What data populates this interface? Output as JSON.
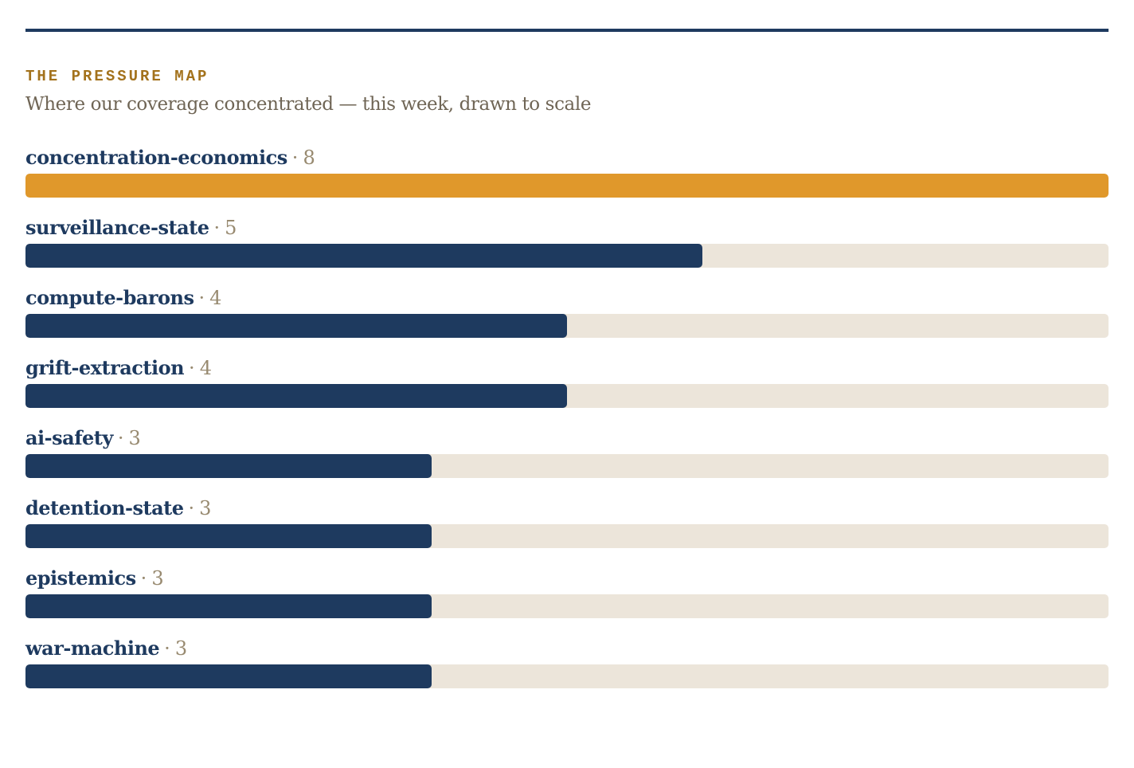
{
  "header": {
    "kicker": "THE PRESSURE MAP",
    "subtitle": "Where our coverage concentrated — this week, drawn to scale"
  },
  "colors": {
    "rule": "#1e3a5f",
    "bar": "#1e3a5f",
    "bar_highlight": "#e0982b",
    "track": "#ece5da",
    "kicker": "#a3721c"
  },
  "separator": "·",
  "chart_data": {
    "type": "bar",
    "orientation": "horizontal",
    "title": "THE PRESSURE MAP",
    "subtitle": "Where our coverage concentrated — this week, drawn to scale",
    "categories": [
      "concentration-economics",
      "surveillance-state",
      "compute-barons",
      "grift-extraction",
      "ai-safety",
      "detention-state",
      "epistemics",
      "war-machine"
    ],
    "values": [
      8,
      5,
      4,
      4,
      3,
      3,
      3,
      3
    ],
    "xlim": [
      0,
      8
    ],
    "highlight_index": 0,
    "grid": false,
    "legend": "none"
  }
}
